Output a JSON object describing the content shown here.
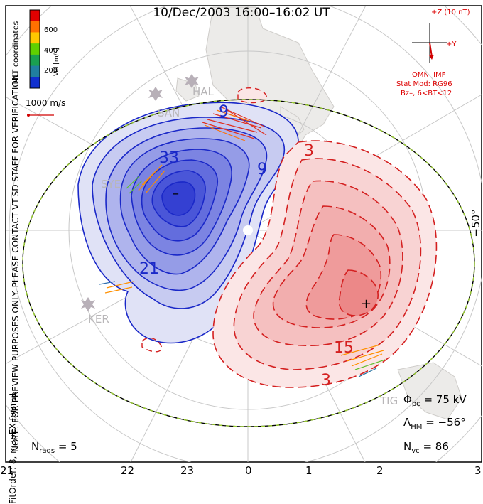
{
  "title": "10/Dec/2003 16:00–16:02 UT",
  "side_note": "NOTE: FOR PREVIEW PURPOSES ONLY. PLEASE CONTACT VT-SD STAFF FOR VERIFICATION.",
  "fit_order_note": "FitOrder: 8, mapEX format",
  "coords_label": "MLT coordinates",
  "velocity_legend": {
    "label": "Vel [m/s]",
    "ticks": [
      "600",
      "400",
      "200"
    ],
    "colors": [
      "#e00000",
      "#ff7000",
      "#ffc800",
      "#60d000",
      "#1aa050",
      "#2080a0",
      "#1030d0"
    ],
    "scale_vector_label": "1000 m/s",
    "scale_vector_color": "#d00000"
  },
  "imf": {
    "z_label": "+Z (10 nT)",
    "y_label": "+Y",
    "source_label": "OMNI IMF",
    "stat_model": "Stat Mod: RG96",
    "condition": "Bz–, 6<BT<12",
    "color": "#d00000"
  },
  "latitude_label": "−50°",
  "stations": [
    "HAL",
    "SAN",
    "SYE",
    "KER",
    "TIG"
  ],
  "contour_labels": {
    "negative": [
      "9",
      "33",
      "9",
      "21"
    ],
    "positive": [
      "3",
      "15",
      "3"
    ]
  },
  "potential_markers": {
    "min": "–",
    "max": "+"
  },
  "stats": {
    "phi_pc_symbol": "Φ",
    "phi_pc_sub": "pc",
    "phi_pc_value": "= 75 kV",
    "lambda_hm_symbol": "Λ",
    "lambda_hm_sub": "HM",
    "lambda_hm_value": "= −56°",
    "n_vc_symbol": "N",
    "n_vc_sub": "vc",
    "n_vc_value": "= 86",
    "n_rads_symbol": "N",
    "n_rads_sub": "rads",
    "n_rads_value": "= 5"
  },
  "mlt_ticks": [
    "21",
    "22",
    "23",
    "0",
    "1",
    "2",
    "3"
  ],
  "colors": {
    "negative_cell": "#2030e0",
    "positive_cell": "#e04040",
    "heppner_maynard_dash": "#9acd32"
  }
}
